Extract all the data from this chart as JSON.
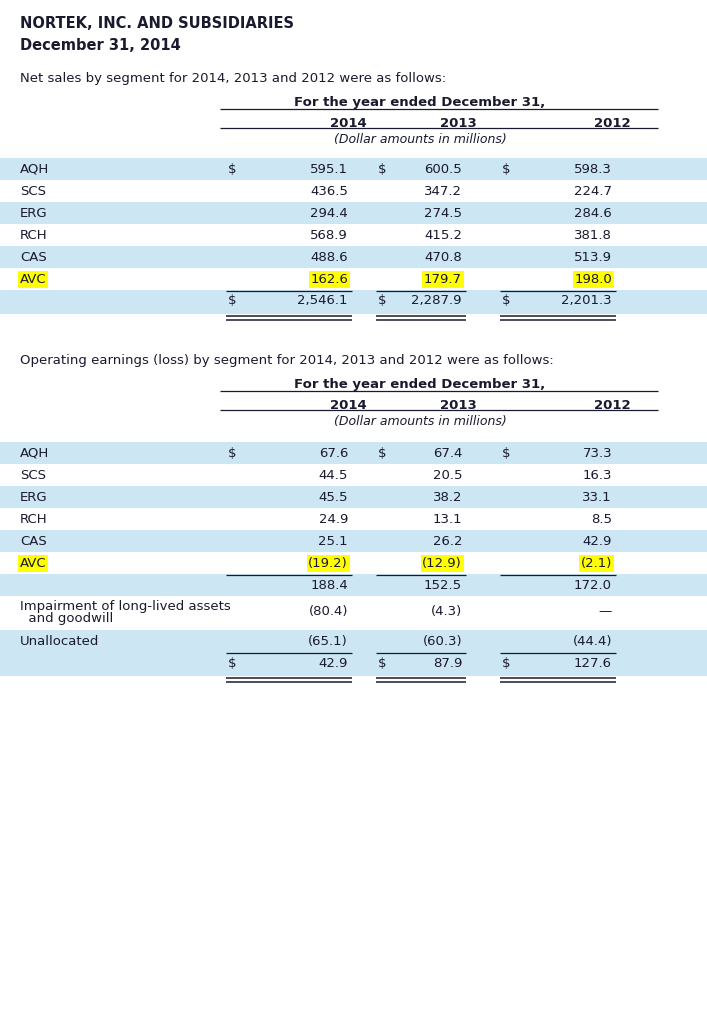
{
  "title": "NORTEK, INC. AND SUBSIDIARIES",
  "subtitle": "December 31, 2014",
  "bg_color": "#ffffff",
  "row_bg_light": "#cce6f4",
  "row_bg_white": "#ffffff",
  "highlight_yellow": "#ffff00",
  "text_color": "#1a1a2e",
  "table1_intro": "Net sales by segment for 2014, 2013 and 2012 were as follows:",
  "table1_header_main": "For the year ended December 31,",
  "table1_subheader": "(Dollar amounts in millions)",
  "table1_years": [
    "2014",
    "2013",
    "2012"
  ],
  "table1_segments": [
    "AQH",
    "SCS",
    "ERG",
    "RCH",
    "CAS",
    "AVC"
  ],
  "table1_data": [
    [
      "$",
      "595.1",
      "$",
      "600.5",
      "$",
      "598.3"
    ],
    [
      "",
      "436.5",
      "",
      "347.2",
      "",
      "224.7"
    ],
    [
      "",
      "294.4",
      "",
      "274.5",
      "",
      "284.6"
    ],
    [
      "",
      "568.9",
      "",
      "415.2",
      "",
      "381.8"
    ],
    [
      "",
      "488.6",
      "",
      "470.8",
      "",
      "513.9"
    ],
    [
      "",
      "162.6",
      "",
      "179.7",
      "",
      "198.0"
    ]
  ],
  "table1_total": [
    "$",
    "2,546.1",
    "$",
    "2,287.9",
    "$",
    "2,201.3"
  ],
  "table2_intro": "Operating earnings (loss) by segment for 2014, 2013 and 2012 were as follows:",
  "table2_header_main": "For the year ended December 31,",
  "table2_subheader": "(Dollar amounts in millions)",
  "table2_years": [
    "2014",
    "2013",
    "2012"
  ],
  "table2_segments": [
    "AQH",
    "SCS",
    "ERG",
    "RCH",
    "CAS",
    "AVC"
  ],
  "table2_data": [
    [
      "$",
      "67.6",
      "$",
      "67.4",
      "$",
      "73.3"
    ],
    [
      "",
      "44.5",
      "",
      "20.5",
      "",
      "16.3"
    ],
    [
      "",
      "45.5",
      "",
      "38.2",
      "",
      "33.1"
    ],
    [
      "",
      "24.9",
      "",
      "13.1",
      "",
      "8.5"
    ],
    [
      "",
      "25.1",
      "",
      "26.2",
      "",
      "42.9"
    ],
    [
      "",
      "(19.2)",
      "",
      "(12.9)",
      "",
      "(2.1)"
    ]
  ],
  "table2_subtotal": [
    "",
    "188.4",
    "",
    "152.5",
    "",
    "172.0"
  ],
  "table2_impairment_label": [
    "Impairment of long-lived assets",
    "  and goodwill"
  ],
  "table2_impairment": [
    "",
    "(80.4)",
    "",
    "(4.3)",
    "",
    "—"
  ],
  "table2_unallocated_label": "Unallocated",
  "table2_unallocated": [
    "",
    "(65.1)",
    "",
    "(60.3)",
    "",
    "(44.4)"
  ],
  "table2_total": [
    "$",
    "42.9",
    "$",
    "87.9",
    "$",
    "127.6"
  ]
}
